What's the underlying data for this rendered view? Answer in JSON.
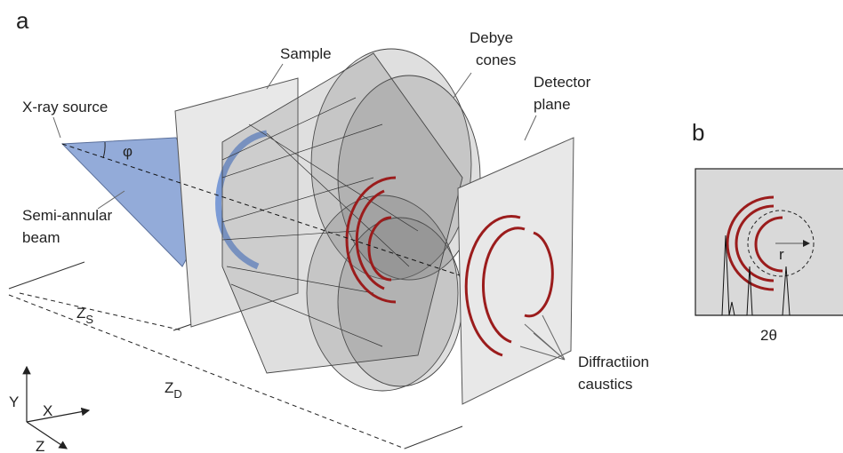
{
  "panels": {
    "a": "a",
    "b": "b"
  },
  "labels": {
    "sample": "Sample",
    "debye_cones": [
      "Debye",
      "cones"
    ],
    "detector_plane": [
      "Detector",
      "plane"
    ],
    "xray_source": "X-ray source",
    "phi": "φ",
    "semi_annular_beam": [
      "Semi-annular",
      "beam"
    ],
    "zs": {
      "main": "Z",
      "sub": "S"
    },
    "zd": {
      "main": "Z",
      "sub": "D"
    },
    "diffraction_caustics": [
      "Diffractiion",
      "caustics"
    ],
    "axis_y": "Y",
    "axis_x": "X",
    "axis_z": "Z",
    "two_theta": "2θ",
    "r": "r"
  }
}
